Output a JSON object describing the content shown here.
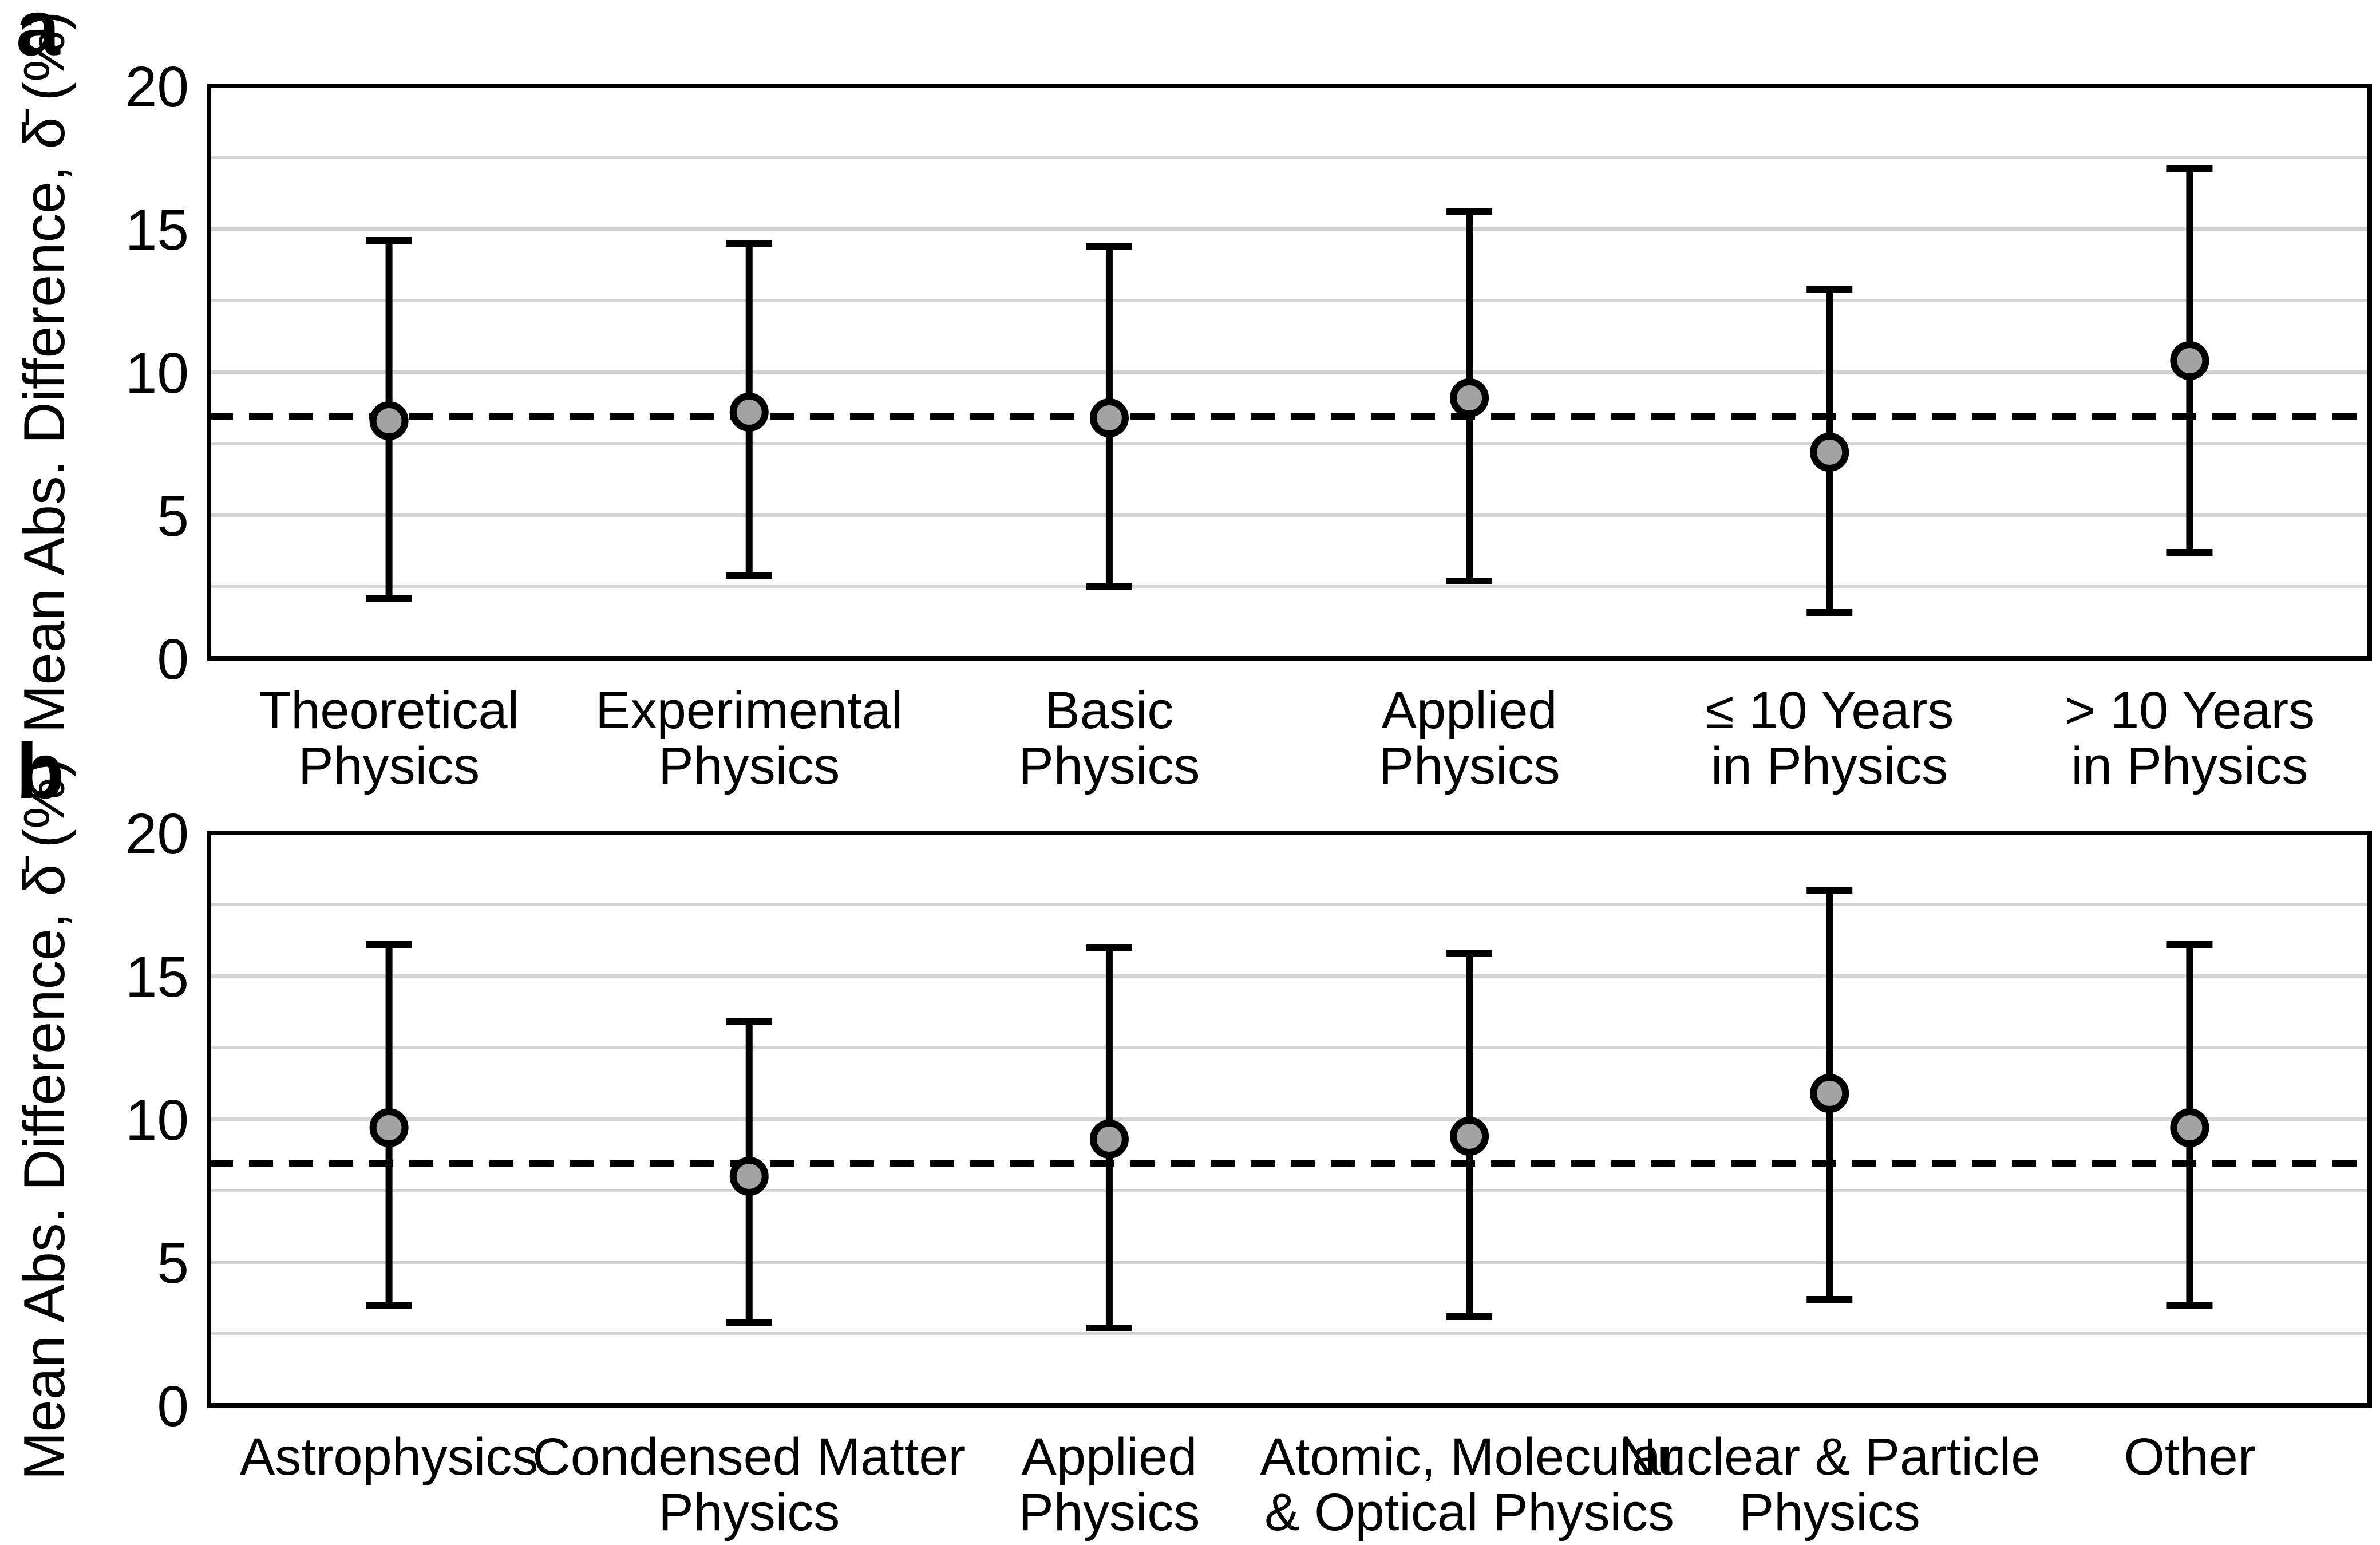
{
  "figure": {
    "background": "#ffffff",
    "colors": {
      "marker_fill": "#a3a3a3",
      "marker_stroke": "#000000",
      "error_bar": "#000000",
      "gridline": "#d4d4d4",
      "dashed_line": "#000000",
      "frame": "#000000",
      "text": "#000000"
    }
  },
  "chart_data": [
    {
      "type": "scatter",
      "panel_letter": "a",
      "ylabel": "Mean Abs. Difference, δ̄ (%)",
      "ylim": [
        0,
        20
      ],
      "yticks": [
        "0",
        "5",
        "10",
        "15",
        "20"
      ],
      "gridline_step": 2.5,
      "grid": true,
      "legend_position": "none",
      "categories": [
        "Theoretical\nPhysics",
        "Experimental\nPhysics",
        "Basic\nPhysics",
        "Applied\nPhysics",
        "≤ 10 Years\nin Physics",
        "> 10 Years\nin Physics"
      ],
      "series": [
        {
          "name": "mean-absolute-difference",
          "means": [
            8.3,
            8.6,
            8.4,
            9.1,
            7.2,
            10.4
          ],
          "whisker_low": [
            2.1,
            2.9,
            2.5,
            2.7,
            1.6,
            3.7
          ],
          "whisker_high": [
            14.6,
            14.5,
            14.4,
            15.6,
            12.9,
            17.1
          ]
        }
      ],
      "reference_line": {
        "value": 8.45,
        "style": "dashed"
      }
    },
    {
      "type": "scatter",
      "panel_letter": "b",
      "ylabel": "Mean Abs. Difference, δ̄ (%)",
      "ylim": [
        0,
        20
      ],
      "yticks": [
        "0",
        "5",
        "10",
        "15",
        "20"
      ],
      "gridline_step": 2.5,
      "grid": true,
      "legend_position": "none",
      "categories": [
        "Astrophysics",
        "Condensed Matter\nPhysics",
        "Applied\nPhysics",
        "Atomic, Molecular\n& Optical Physics",
        "Nuclear & Particle\nPhysics",
        "Other"
      ],
      "series": [
        {
          "name": "mean-absolute-difference",
          "means": [
            9.7,
            8.0,
            9.3,
            9.4,
            10.9,
            9.7
          ],
          "whisker_low": [
            3.5,
            2.9,
            2.7,
            3.1,
            3.7,
            3.5
          ],
          "whisker_high": [
            16.1,
            13.4,
            16.0,
            15.8,
            18.0,
            16.1
          ]
        }
      ],
      "reference_line": {
        "value": 8.45,
        "style": "dashed"
      }
    }
  ]
}
